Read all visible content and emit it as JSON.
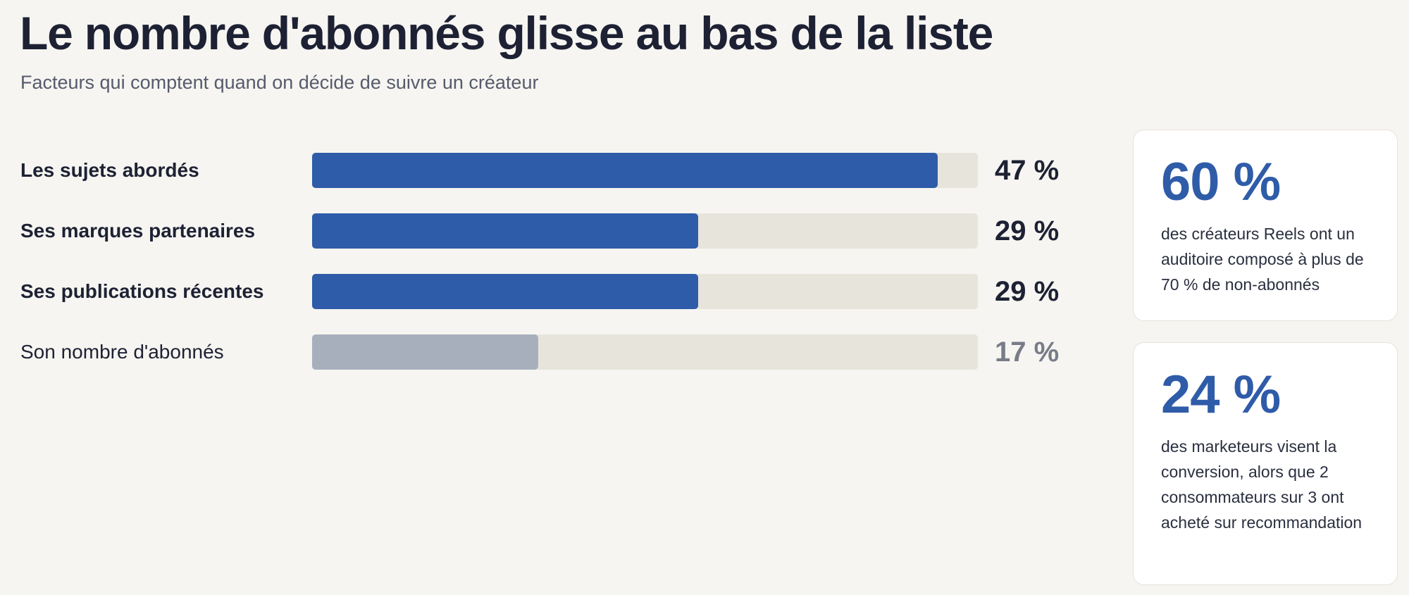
{
  "header": {
    "title": "Le nombre d'abonnés glisse au bas de la liste",
    "subtitle": "Facteurs qui comptent quand on décide de suivre un créateur"
  },
  "chart_data": {
    "type": "bar",
    "orientation": "horizontal",
    "categories": [
      "Les sujets abordés",
      "Ses marques partenaires",
      "Ses publications récentes",
      "Son nombre d'abonnés"
    ],
    "values": [
      47,
      29,
      29,
      17
    ],
    "value_labels": [
      "47 %",
      "29 %",
      "29 %",
      "17 %"
    ],
    "emphasized": [
      true,
      true,
      true,
      false
    ],
    "xlim": [
      0,
      50
    ],
    "grid": false,
    "colors": {
      "bar": "#2f5ca8",
      "bar_muted": "#a8afbc",
      "track": "#e7e4dc",
      "value": "#1d2133",
      "value_muted": "#777c88"
    }
  },
  "stats": [
    {
      "value": "60 %",
      "text": "des créateurs Reels ont un auditoire composé à plus de 70 % de non-abonnés"
    },
    {
      "value": "24 %",
      "text": "des marketeurs visent la conversion, alors que 2 consommateurs sur 3 ont acheté sur recommandation"
    }
  ]
}
